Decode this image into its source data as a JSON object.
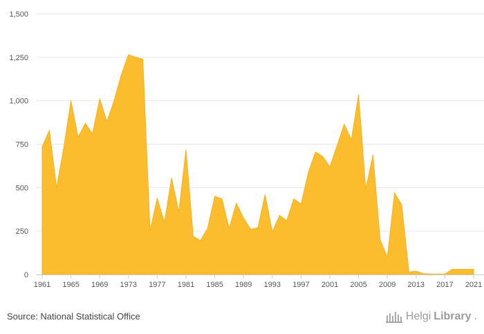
{
  "chart_data": {
    "type": "area",
    "x": [
      1961,
      1962,
      1963,
      1964,
      1965,
      1966,
      1967,
      1968,
      1969,
      1970,
      1971,
      1972,
      1973,
      1974,
      1975,
      1976,
      1977,
      1978,
      1979,
      1980,
      1981,
      1982,
      1983,
      1984,
      1985,
      1986,
      1987,
      1988,
      1989,
      1990,
      1991,
      1992,
      1993,
      1994,
      1995,
      1996,
      1997,
      1998,
      1999,
      2000,
      2001,
      2002,
      2003,
      2004,
      2005,
      2006,
      2007,
      2008,
      2009,
      2010,
      2011,
      2012,
      2013,
      2014,
      2015,
      2016,
      2017,
      2018,
      2019,
      2020,
      2021
    ],
    "series": [
      {
        "values": [
          735,
          830,
          500,
          730,
          1000,
          790,
          870,
          810,
          1010,
          880,
          1000,
          1150,
          1265,
          1250,
          1240,
          250,
          440,
          300,
          555,
          360,
          720,
          220,
          195,
          265,
          450,
          435,
          265,
          410,
          325,
          260,
          270,
          460,
          245,
          340,
          310,
          435,
          405,
          585,
          705,
          680,
          620,
          740,
          865,
          775,
          1035,
          490,
          690,
          200,
          100,
          470,
          400,
          15,
          20,
          5,
          3,
          3,
          3,
          30,
          30,
          30,
          30
        ],
        "color": "#FBBD2E"
      }
    ],
    "xticks": [
      "1961",
      "1965",
      "1969",
      "1973",
      "1977",
      "1981",
      "1985",
      "1989",
      "1993",
      "1997",
      "2001",
      "2005",
      "2009",
      "2013",
      "2017",
      "2021"
    ],
    "yticks": [
      "0",
      "250",
      "500",
      "750",
      "1,000",
      "1,250",
      "1,500"
    ],
    "ylim": [
      0,
      1500
    ],
    "xlim": [
      1961,
      2021
    ],
    "grid": "horizontal",
    "title": "",
    "xlabel": "",
    "ylabel": ""
  },
  "footer": {
    "source": "Source: National Statistical Office",
    "brand_name": "HelgiLibrary",
    "brand_helgi": "Helgi",
    "brand_library": "Library",
    "brand_suffix": "."
  }
}
